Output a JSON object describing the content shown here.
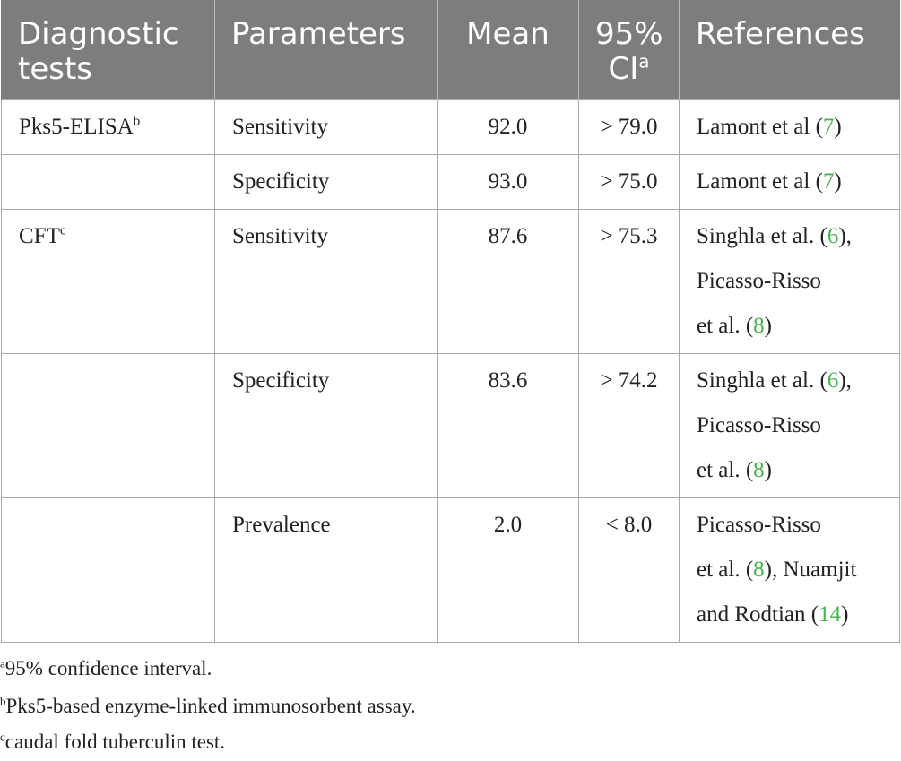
{
  "table": {
    "headers": {
      "diagnostic_tests": "Diagnostic tests",
      "parameters": "Parameters",
      "mean": "Mean",
      "ci": "95% CI",
      "ci_marker": "a",
      "references": "References"
    },
    "rows": [
      {
        "test": "Pks5-ELISA",
        "test_marker": "b",
        "parameter": "Sensitivity",
        "mean": "92.0",
        "ci": "> 79.0",
        "ref": [
          {
            "t": "Lamont et al ("
          },
          {
            "c": "7"
          },
          {
            "t": ")"
          }
        ]
      },
      {
        "test": "",
        "test_marker": "",
        "parameter": "Specificity",
        "mean": "93.0",
        "ci": "> 75.0",
        "ref": [
          {
            "t": "Lamont et al ("
          },
          {
            "c": "7"
          },
          {
            "t": ")"
          }
        ]
      },
      {
        "test": "CFT",
        "test_marker": "c",
        "parameter": "Sensitivity",
        "mean": "87.6",
        "ci": "> 75.3",
        "ref": [
          {
            "t": "Singhla et al. ("
          },
          {
            "c": "6"
          },
          {
            "t": "),"
          },
          {
            "br": true
          },
          {
            "t": "Picasso-Risso"
          },
          {
            "br": true
          },
          {
            "t": "et al. ("
          },
          {
            "c": "8"
          },
          {
            "t": ")"
          }
        ]
      },
      {
        "test": "",
        "test_marker": "",
        "parameter": "Specificity",
        "mean": "83.6",
        "ci": "> 74.2",
        "ref": [
          {
            "t": "Singhla et al. ("
          },
          {
            "c": "6"
          },
          {
            "t": "),"
          },
          {
            "br": true
          },
          {
            "t": "Picasso-Risso"
          },
          {
            "br": true
          },
          {
            "t": "et al. ("
          },
          {
            "c": "8"
          },
          {
            "t": ")"
          }
        ]
      },
      {
        "test": "",
        "test_marker": "",
        "parameter": "Prevalence",
        "mean": "2.0",
        "ci": "< 8.0",
        "ref": [
          {
            "t": "Picasso-Risso"
          },
          {
            "br": true
          },
          {
            "t": "et al. ("
          },
          {
            "c": "8"
          },
          {
            "t": "), Nuamjit"
          },
          {
            "br": true
          },
          {
            "t": "and Rodtian ("
          },
          {
            "c": "14"
          },
          {
            "t": ")"
          }
        ]
      }
    ]
  },
  "footnotes": [
    {
      "marker": "a",
      "text": "95% confidence interval."
    },
    {
      "marker": "b",
      "text": "Pks5-based enzyme-linked immunosorbent assay."
    },
    {
      "marker": "c",
      "text": "caudal fold tuberculin test."
    }
  ],
  "colors": {
    "header_bg": "#7d7d7d",
    "header_text": "#ffffff",
    "citation": "#4caf50",
    "border": "#a9a9a9"
  }
}
